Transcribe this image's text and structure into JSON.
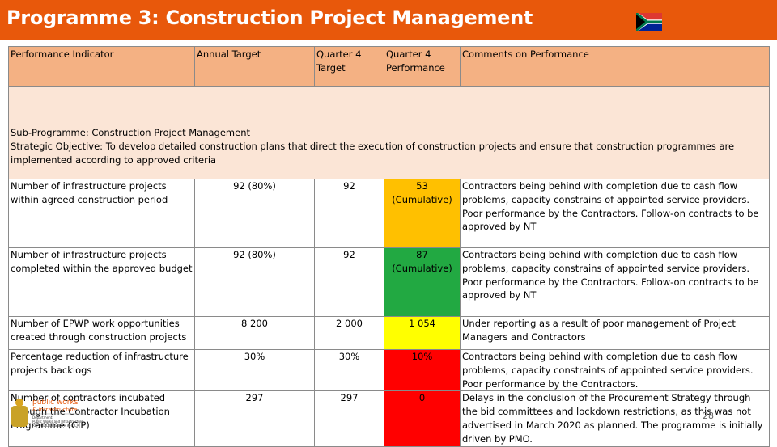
{
  "slide": {
    "title": "Programme 3: Construction Project Management",
    "page_number": "28",
    "colors": {
      "header_bar": "#e8580b",
      "table_header": "#f4b183",
      "subprogramme": "#fbe5d6",
      "amber": "#ffc000",
      "green": "#22a942",
      "yellow": "#ffff00",
      "red": "#ff0000"
    }
  },
  "table": {
    "headers": [
      "Performance Indicator",
      "Annual Target",
      "Quarter 4 Target",
      "Quarter 4 Performance",
      "Comments on Performance"
    ],
    "subprogramme": [
      "Sub-Programme: Construction Project Management",
      "Strategic Objective: To develop detailed construction plans that direct the execution of construction projects and ensure that construction programmes are implemented according to approved criteria"
    ],
    "rows": [
      {
        "indicator": "Number of infrastructure projects within agreed construction period",
        "annual_target": "92 (80%)",
        "q4_target": "92",
        "q4_performance": "53 (Cumulative)",
        "status": "amber",
        "comments": "Contractors being behind with completion due to cash flow problems, capacity constrains of appointed service providers. Poor performance by the Contractors. Follow-on contracts to be approved by NT"
      },
      {
        "indicator": "Number of infrastructure projects completed within the approved budget",
        "annual_target": "92 (80%)",
        "q4_target": "92",
        "q4_performance": "87 (Cumulative)",
        "status": "green",
        "comments": "Contractors being behind with completion due to cash flow problems, capacity constrains of appointed service providers. Poor performance by the Contractors. Follow-on contracts to be approved by NT"
      },
      {
        "indicator": "Number of EPWP work opportunities created through construction projects",
        "annual_target": "8 200",
        "q4_target": "2 000",
        "q4_performance": "1 054",
        "status": "yellow",
        "comments": "Under reporting as a result of poor management of Project Managers and Contractors"
      },
      {
        "indicator": "Percentage reduction of infrastructure projects backlogs",
        "annual_target": "30%",
        "q4_target": "30%",
        "q4_performance": "10%",
        "status": "red",
        "comments": "Contractors being behind with completion due to cash flow problems, capacity constraints of appointed service providers. Poor performance by the Contractors."
      },
      {
        "indicator": "Number of contractors incubated through the Contractor Incubation Programme (CIP)",
        "annual_target": "297",
        "q4_target": "297",
        "q4_performance": "0",
        "status": "red",
        "comments": "Delays in the conclusion of the Procurement Strategy through the bid committees and lockdown restrictions, as this was not advertised in March 2020 as planned. The programme is initially driven by PMO."
      }
    ]
  },
  "logo": {
    "line1": "public works",
    "line2": "& infrastructure",
    "line3": "Department:",
    "line4": "Public Works and Infrastructure",
    "line5": "REPUBLIC OF SOUTH AFRICA"
  }
}
